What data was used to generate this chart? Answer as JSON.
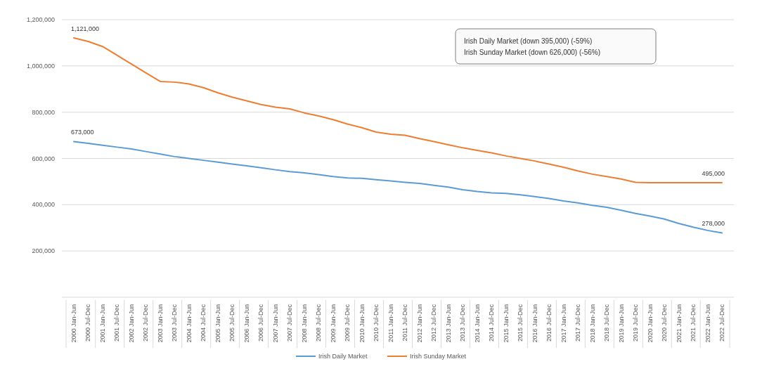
{
  "chart_data": {
    "type": "line",
    "categories": [
      "2000 Jan-Jun",
      "2000 Jul-Dec",
      "2001 Jan-Jun",
      "2001 Jul-Dec",
      "2002 Jan-Jun",
      "2002 Jul-Dec",
      "2003 Jan-Jun",
      "2003 Jul-Dec",
      "2004 Jan-Jun",
      "2004 Jul-Dec",
      "2005 Jan-Jun",
      "2005 Jul-Dec",
      "2006 Jan-Jun",
      "2006 Jul-Dec",
      "2007 Jan-Jun",
      "2007 Jul-Dec",
      "2008 Jan-Jun",
      "2008 Jul-Dec",
      "2009 Jan-Jun",
      "2009 Jul-Dec",
      "2010 Jan-Jun",
      "2010 Jul-Dec",
      "2011 Jan-Jun",
      "2011 Jul-Dec",
      "2012 Jan-Jun",
      "2012 Jul-Dec",
      "2013 Jan-Jun",
      "2013 Jul-Dec",
      "2014 Jan-Jun",
      "2014 Jul-Dec",
      "2015 Jan-Jun",
      "2015 Jul-Dec",
      "2016 Jan-Jun",
      "2016 Jul-Dec",
      "2017 Jan-Jun",
      "2017 Jul-Dec",
      "2018 Jan-Jun",
      "2018 Jul-Dec",
      "2019 Jan-Jun",
      "2019 Jul-Dec",
      "2020 Jan-Jun",
      "2020 Jul-Dec",
      "2021 Jan-Jun",
      "2021 Jul-Dec",
      "2022 Jan-Jun",
      "2022 Jul-Dec"
    ],
    "series": [
      {
        "name": "Irish Daily Market",
        "color": "#5b9bd5",
        "values": [
          673000,
          665000,
          657000,
          649000,
          641000,
          630000,
          619000,
          608000,
          600000,
          592000,
          584000,
          576000,
          568000,
          560000,
          551000,
          543000,
          538000,
          530000,
          522000,
          516000,
          514000,
          508000,
          503000,
          497000,
          492000,
          484000,
          476000,
          465000,
          457000,
          451000,
          449000,
          443000,
          435000,
          427000,
          416000,
          408000,
          397000,
          389000,
          376000,
          362000,
          351000,
          338000,
          319000,
          303000,
          289000,
          278000
        ],
        "value_labels": [
          "673,000",
          null,
          null,
          null,
          null,
          null,
          null,
          null,
          null,
          null,
          null,
          null,
          null,
          null,
          null,
          null,
          null,
          null,
          null,
          null,
          null,
          null,
          null,
          null,
          null,
          null,
          null,
          null,
          null,
          null,
          null,
          null,
          null,
          null,
          null,
          null,
          null,
          null,
          null,
          null,
          null,
          null,
          null,
          null,
          null,
          "278,000"
        ]
      },
      {
        "name": "Irish Sunday Market",
        "color": "#ed7d31",
        "values": [
          1121000,
          1106000,
          1084000,
          1046000,
          1008000,
          970000,
          933000,
          930000,
          922000,
          906000,
          884000,
          865000,
          849000,
          833000,
          822000,
          814000,
          797000,
          784000,
          768000,
          749000,
          733000,
          714000,
          705000,
          700000,
          686000,
          673000,
          659000,
          646000,
          635000,
          624000,
          611000,
          600000,
          589000,
          576000,
          562000,
          546000,
          532000,
          522000,
          511000,
          497000,
          495000,
          495000,
          495000,
          495000,
          495000,
          495000
        ],
        "value_labels": [
          "1,121,000",
          null,
          null,
          null,
          null,
          null,
          null,
          null,
          null,
          null,
          null,
          null,
          null,
          null,
          null,
          null,
          null,
          null,
          null,
          null,
          null,
          null,
          null,
          null,
          null,
          null,
          null,
          null,
          null,
          null,
          null,
          null,
          null,
          null,
          null,
          null,
          null,
          null,
          null,
          null,
          null,
          null,
          null,
          null,
          null,
          "495,000"
        ]
      }
    ],
    "ylim": [
      0,
      1200000
    ],
    "yticks": [
      {
        "value": 0,
        "label": null
      },
      {
        "value": 200000,
        "label": "200,000"
      },
      {
        "value": 400000,
        "label": "400,000"
      },
      {
        "value": 600000,
        "label": "600,000"
      },
      {
        "value": 800000,
        "label": "800,000"
      },
      {
        "value": 1000000,
        "label": "1,000,000"
      },
      {
        "value": 1200000,
        "label": "1,200,000"
      }
    ],
    "grid": "y",
    "legend": "bottom",
    "marker": "none",
    "line_style": "solid",
    "annotations": [
      "Irish Daily Market (down 395,000) (-59%)",
      "Irish Sunday Market (down 626,000) (-56%)"
    ]
  }
}
